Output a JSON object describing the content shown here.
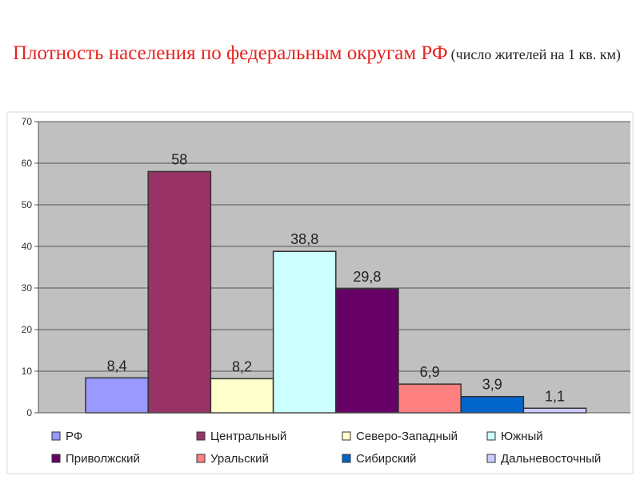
{
  "title": {
    "main": "Плотность населения по федеральным округам РФ",
    "sub": "(число жителей на 1 кв. км)"
  },
  "chart_data": {
    "type": "bar",
    "title": "Плотность населения по федеральным округам РФ (число жителей на 1 кв. км)",
    "ylim": [
      0,
      70
    ],
    "yticks": [
      "0",
      "10",
      "20",
      "30",
      "40",
      "50",
      "60",
      "70"
    ],
    "grid": true,
    "legend_position": "bottom",
    "background": "#c0c0c0",
    "series": [
      {
        "name": "РФ",
        "value": 8.4,
        "label": "8,4",
        "color": "#9999ff"
      },
      {
        "name": "Центральный",
        "value": 58,
        "label": "58",
        "color": "#993366"
      },
      {
        "name": "Северо-Западный",
        "value": 8.2,
        "label": "8,2",
        "color": "#ffffcc"
      },
      {
        "name": "Южный",
        "value": 38.8,
        "label": "38,8",
        "color": "#ccffff"
      },
      {
        "name": "Приволжский",
        "value": 29.8,
        "label": "29,8",
        "color": "#660066"
      },
      {
        "name": "Уральский",
        "value": 6.9,
        "label": "6,9",
        "color": "#ff8080"
      },
      {
        "name": "Сибирский",
        "value": 3.9,
        "label": "3,9",
        "color": "#0066cc"
      },
      {
        "name": "Дальневосточный",
        "value": 1.1,
        "label": "1,1",
        "color": "#ccccff"
      }
    ]
  }
}
